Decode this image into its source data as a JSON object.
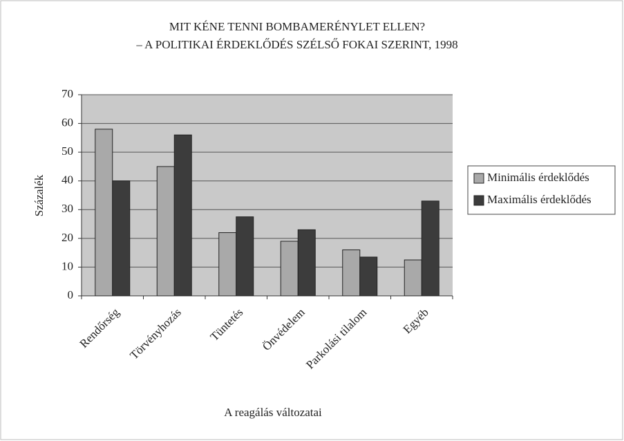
{
  "chart_data": {
    "type": "bar",
    "title": "MIT KÉNE TENNI BOMBAMERÉNYLET ELLEN?",
    "subtitle": "– A POLITIKAI ÉRDEKLŐDÉS SZÉLSŐ FOKAI SZERINT, 1998",
    "y_label": "Százalék",
    "x_label": "A reagálás változatai",
    "categories": [
      "Rendőrség",
      "Törvényhozás",
      "Tüntetés",
      "Önvédelem",
      "Parkolási tilalom",
      "Egyéb"
    ],
    "series": [
      {
        "name": "Minimális érdeklődés",
        "color": "#a9a9a9",
        "values": [
          58,
          45,
          22,
          19,
          16,
          12.5
        ]
      },
      {
        "name": "Maximális érdeklődés",
        "color": "#3c3c3c",
        "values": [
          40,
          56,
          27.5,
          23,
          13.5,
          33
        ]
      }
    ],
    "ylim": [
      0,
      70
    ],
    "yticks": [
      0,
      10,
      20,
      30,
      40,
      50,
      60,
      70
    ],
    "grid": true,
    "legend": "right"
  }
}
